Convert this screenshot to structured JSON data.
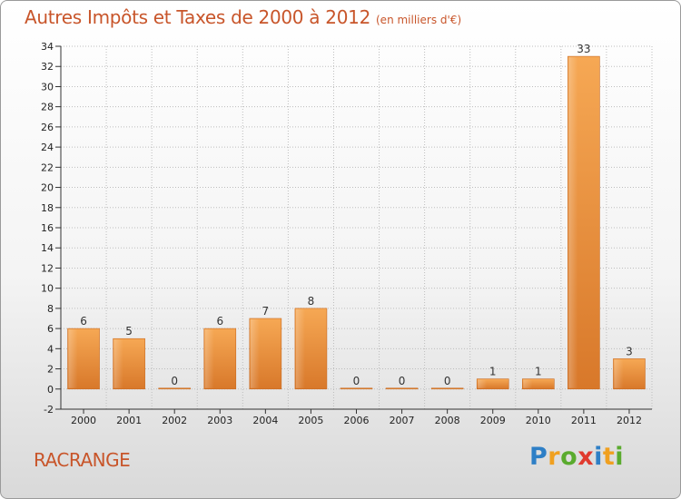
{
  "header": {
    "title": "Autres Impôts et Taxes de 2000 à 2012",
    "subtitle": "(en milliers d'€)"
  },
  "footer": {
    "commune": "RACRANGE",
    "brand_letters": [
      "P",
      "r",
      "o",
      "x",
      "i",
      "t",
      "i"
    ],
    "brand_colors": [
      "#2e7fc6",
      "#f0a020",
      "#5aab2e",
      "#e03a2e",
      "#2e7fc6",
      "#f0a020",
      "#5aab2e"
    ]
  },
  "colors": {
    "bar_light": "#f6a854",
    "bar_dark": "#d8782a",
    "title": "#c8552a",
    "grid": "#bdbdbd"
  },
  "chart_data": {
    "type": "bar",
    "categories": [
      "2000",
      "2001",
      "2002",
      "2003",
      "2004",
      "2005",
      "2006",
      "2007",
      "2008",
      "2009",
      "2010",
      "2011",
      "2012"
    ],
    "values": [
      6,
      5,
      0,
      6,
      7,
      8,
      0,
      0,
      0,
      1,
      1,
      33,
      3
    ],
    "title": "Autres Impôts et Taxes de 2000 à 2012",
    "subtitle": "(en milliers d'€)",
    "xlabel": "",
    "ylabel": "",
    "ylim": [
      -2,
      34
    ],
    "yticks": [
      -2,
      0,
      2,
      4,
      6,
      8,
      10,
      12,
      14,
      16,
      18,
      20,
      22,
      24,
      26,
      28,
      30,
      32,
      34
    ],
    "grid": true,
    "legend": "none"
  }
}
